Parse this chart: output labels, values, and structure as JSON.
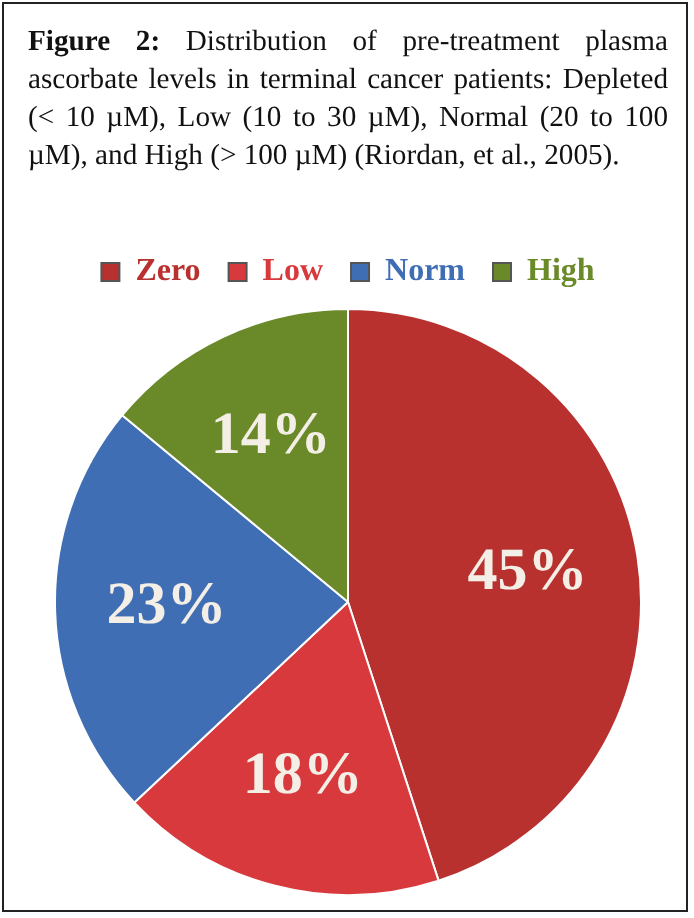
{
  "chart_data": {
    "type": "pie",
    "title": "Figure 2: Distribution of pre-treatment plasma ascorbate levels in terminal cancer patients: Depleted (< 10 µM), Low (10 to 30 µM), Normal (20 to 100 µM), and High (> 100 µM) (Riordan, et al., 2005).",
    "categories": [
      "Zero",
      "Low",
      "Norm",
      "High"
    ],
    "values": [
      45,
      18,
      23,
      14
    ],
    "colors": [
      "#b8312f",
      "#d8393c",
      "#3f6eb4",
      "#6a8a2a"
    ],
    "value_labels": [
      "45%",
      "18%",
      "23%",
      "14%"
    ],
    "legend": "top"
  }
}
